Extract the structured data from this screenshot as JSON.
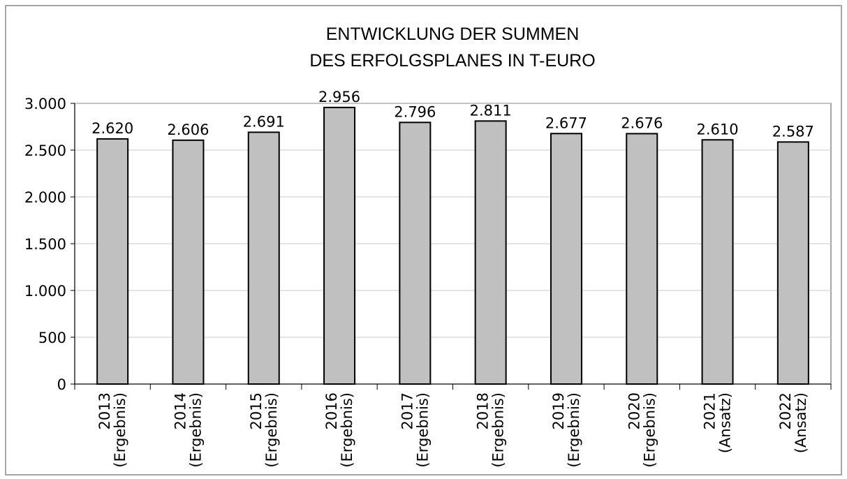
{
  "chart_data": {
    "type": "bar",
    "title": [
      "ENTWICKLUNG DER SUMMEN",
      "DES ERFOLGSPLANES IN T-EURO"
    ],
    "categories": [
      [
        "2013",
        "(Ergebnis)"
      ],
      [
        "2014",
        "(Ergebnis)"
      ],
      [
        "2015",
        "(Ergebnis)"
      ],
      [
        "2016",
        "(Ergebnis)"
      ],
      [
        "2017",
        "(Ergebnis)"
      ],
      [
        "2018",
        "(Ergebnis)"
      ],
      [
        "2019",
        "(Ergebnis)"
      ],
      [
        "2020",
        "(Ergebnis)"
      ],
      [
        "2021",
        "(Ansatz)"
      ],
      [
        "2022",
        "(Ansatz)"
      ]
    ],
    "values": [
      2620,
      2606,
      2691,
      2956,
      2796,
      2811,
      2677,
      2676,
      2610,
      2587
    ],
    "value_labels": [
      "2.620",
      "2.606",
      "2.691",
      "2.956",
      "2.796",
      "2.811",
      "2.677",
      "2.676",
      "2.610",
      "2.587"
    ],
    "color": "#c0c0c0",
    "ylim": [
      0,
      3000
    ],
    "yticks": [
      0,
      500,
      {
        "value": 1000,
        "label": "1.000"
      },
      {
        "value": 1500,
        "label": "1.500"
      },
      {
        "value": 2000,
        "label": "2.000"
      },
      {
        "value": 2500,
        "label": "2.500"
      },
      {
        "value": 3000,
        "label": "3.000"
      }
    ],
    "grid": true
  }
}
